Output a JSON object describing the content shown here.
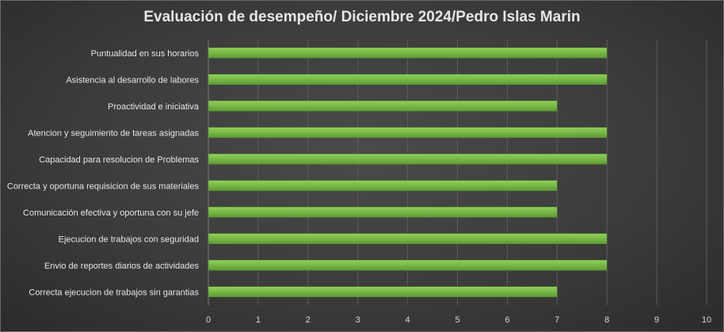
{
  "chart_data": {
    "type": "bar",
    "orientation": "horizontal",
    "title": "Evaluación de desempeño/ Diciembre 2024/Pedro Islas Marin",
    "categories": [
      "Puntualidad en sus horarios",
      "Asistencia al desarrollo de labores",
      "Proactividad e iniciativa",
      "Atencion y seguimiento de tareas asignadas",
      "Capacidad para resolucion de Problemas",
      "Correcta y oportuna requisicion de sus materiales",
      "Comunicación  efectiva y oportuna con su jefe",
      "Ejecucion de trabajos con seguridad",
      "Envio de reportes diarios de actividades",
      "Correcta ejecucion de trabajos sin garantias"
    ],
    "values": [
      8,
      8,
      7,
      8,
      8,
      7,
      7,
      8,
      8,
      7
    ],
    "xlim": [
      0,
      10
    ],
    "xticks": [
      "0",
      "1",
      "2",
      "3",
      "4",
      "5",
      "6",
      "7",
      "8",
      "9",
      "10"
    ],
    "grid": true,
    "legend": "none",
    "bar_color": "#78b846"
  }
}
